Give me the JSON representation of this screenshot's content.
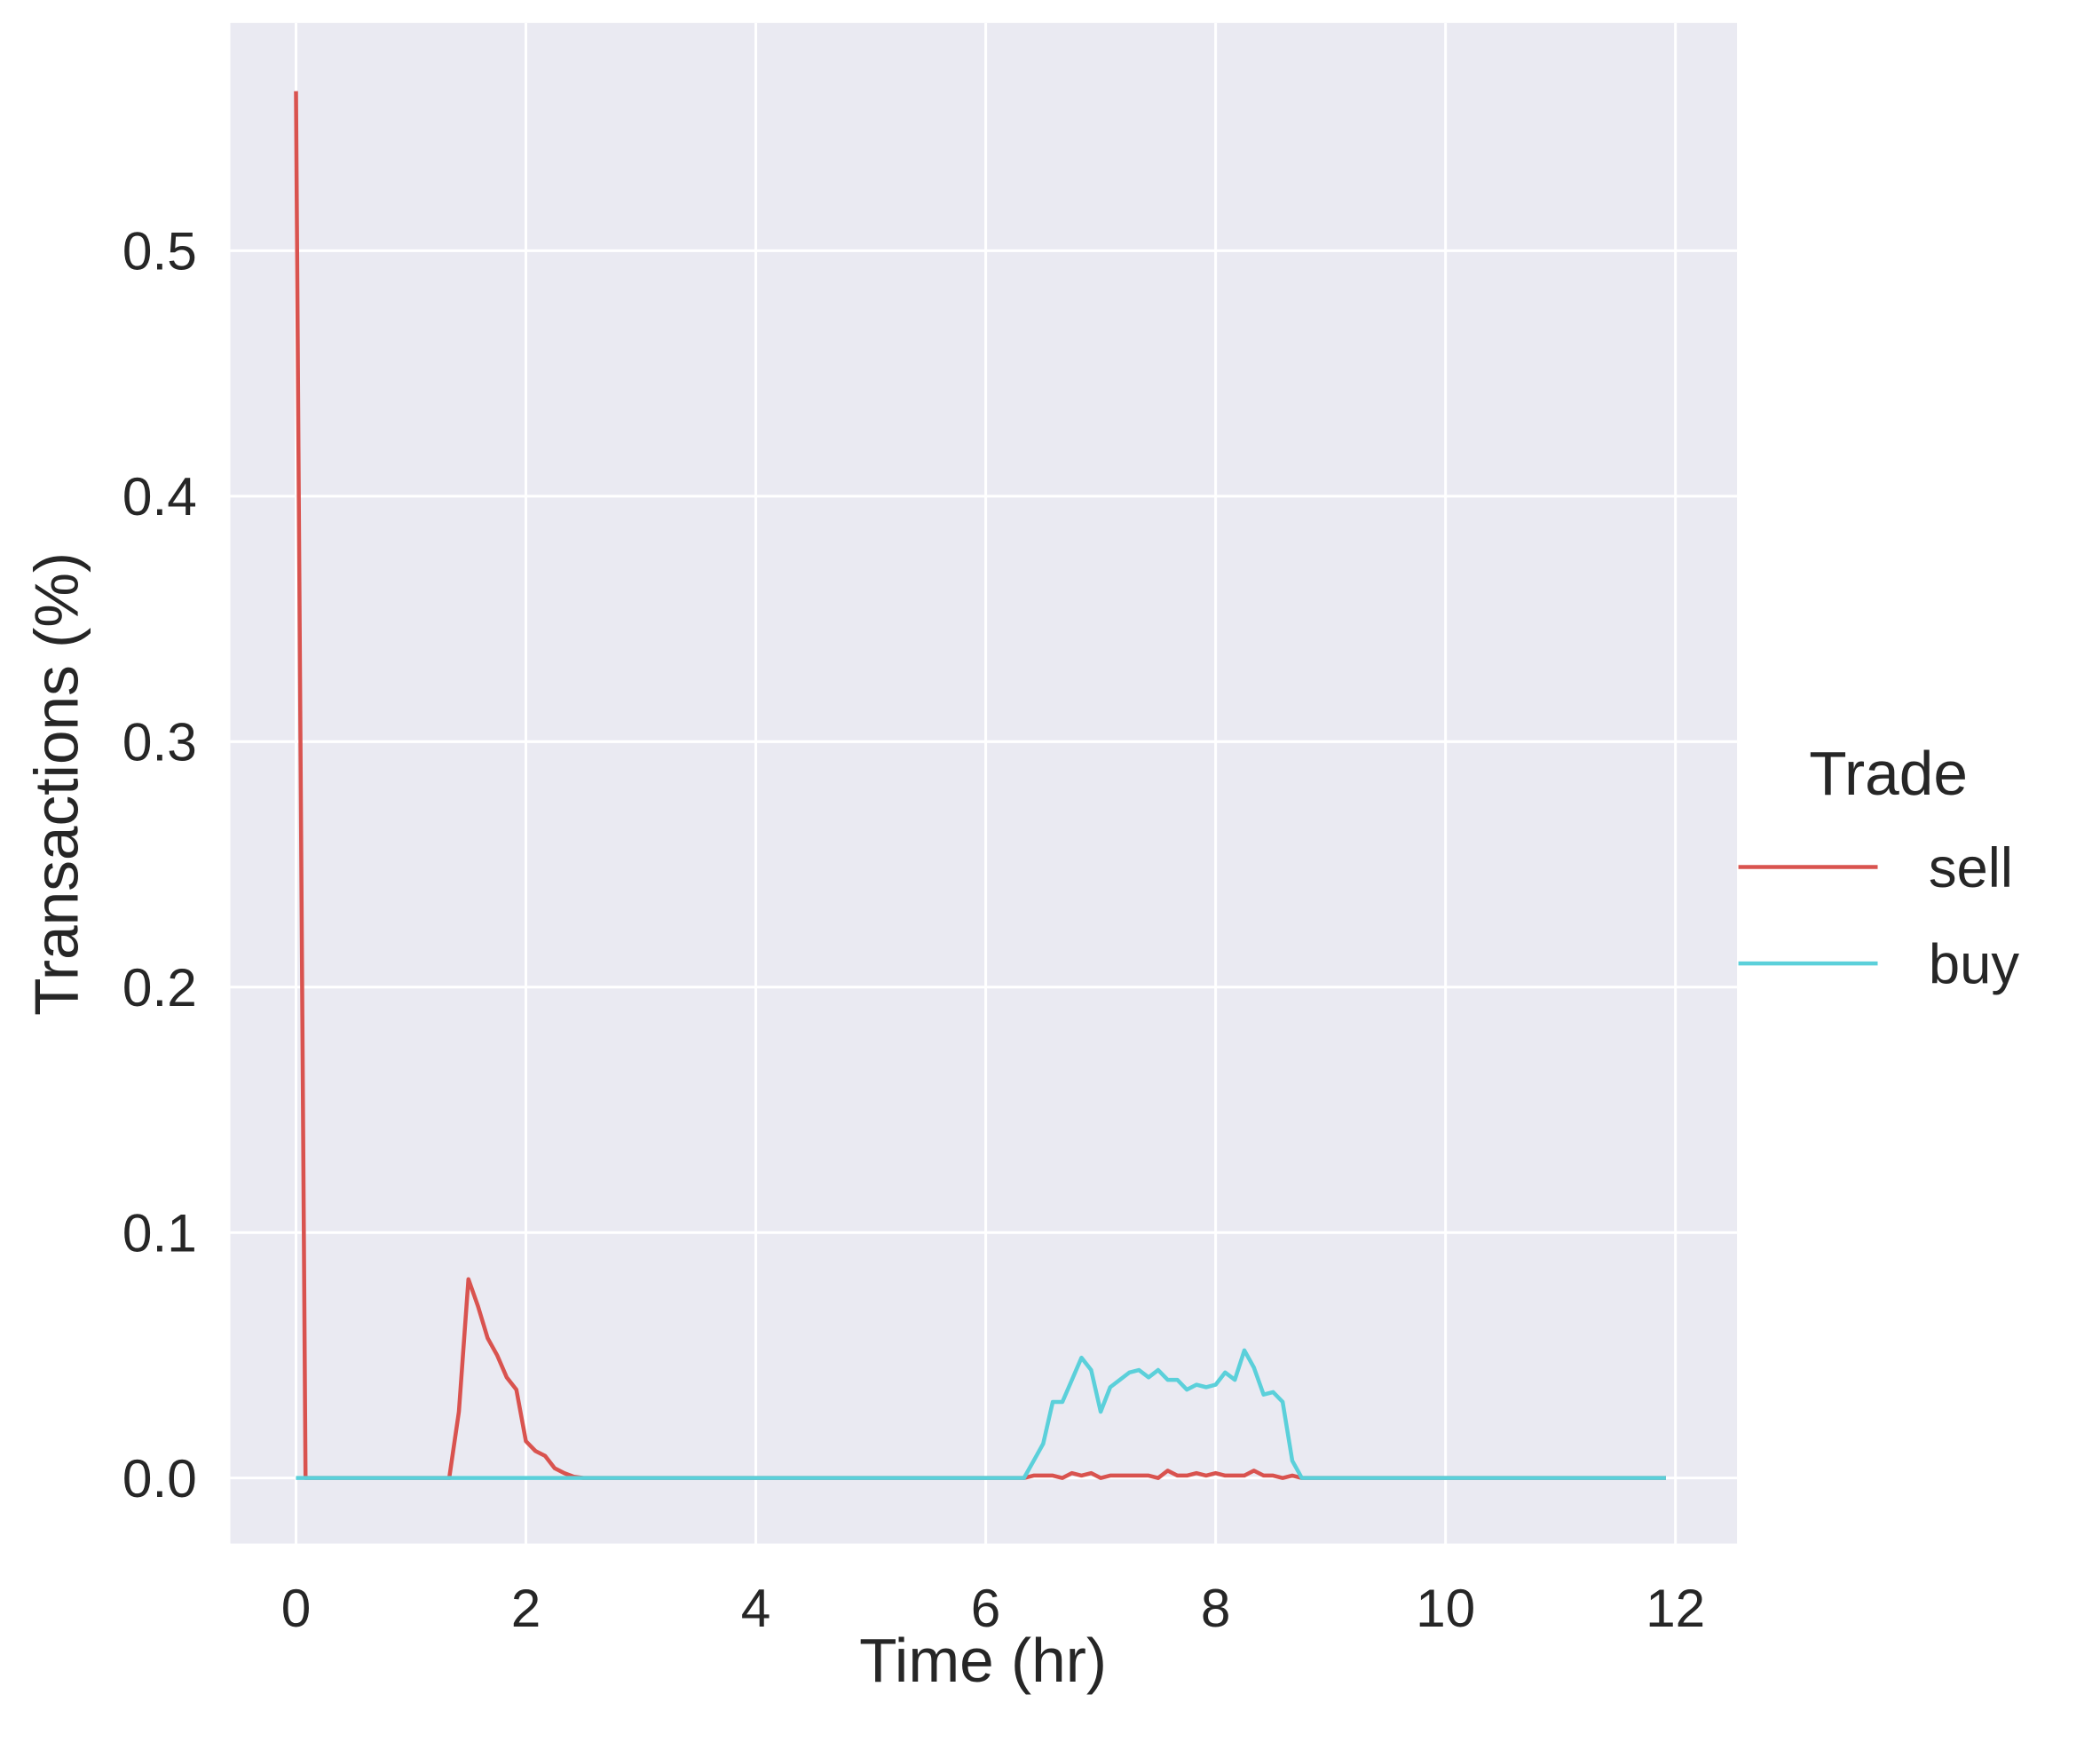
{
  "chart_data": {
    "type": "line",
    "x_label": "Time (hr)",
    "y_label": "Transactions (%)",
    "legend_title": "Trade",
    "legend_position": "right",
    "grid": true,
    "xlim": [
      -0.571,
      12.536
    ],
    "ylim": [
      -0.0267,
      0.5928
    ],
    "xticks": [
      0,
      2,
      4,
      6,
      8,
      10,
      12
    ],
    "yticks": [
      {
        "value": 0,
        "label": "0.0"
      },
      0.1,
      0.2,
      0.3,
      0.4,
      0.5
    ],
    "x": [
      0,
      0.083,
      0.167,
      0.25,
      0.333,
      0.417,
      0.5,
      0.583,
      0.667,
      0.75,
      0.833,
      0.917,
      1,
      1.083,
      1.167,
      1.25,
      1.333,
      1.417,
      1.5,
      1.583,
      1.667,
      1.75,
      1.833,
      1.917,
      2,
      2.083,
      2.167,
      2.25,
      2.333,
      2.417,
      2.5,
      2.583,
      2.667,
      2.75,
      2.833,
      2.917,
      3,
      3.083,
      3.167,
      3.25,
      3.333,
      3.417,
      3.5,
      3.583,
      3.667,
      3.75,
      3.833,
      3.917,
      4,
      4.083,
      4.167,
      4.25,
      4.333,
      4.417,
      4.5,
      4.583,
      4.667,
      4.75,
      4.833,
      4.917,
      5,
      5.083,
      5.167,
      5.25,
      5.333,
      5.417,
      5.5,
      5.583,
      5.667,
      5.75,
      5.833,
      5.917,
      6,
      6.083,
      6.167,
      6.25,
      6.333,
      6.417,
      6.5,
      6.583,
      6.667,
      6.75,
      6.833,
      6.917,
      7,
      7.083,
      7.167,
      7.25,
      7.333,
      7.417,
      7.5,
      7.583,
      7.667,
      7.75,
      7.833,
      7.917,
      8,
      8.083,
      8.167,
      8.25,
      8.333,
      8.417,
      8.5,
      8.583,
      8.667,
      8.75,
      8.833,
      8.917,
      9,
      9.083,
      9.167,
      9.25,
      9.333,
      9.417,
      9.5,
      9.583,
      9.667,
      9.75,
      9.833,
      9.917,
      10,
      10.083,
      10.167,
      10.25,
      10.333,
      10.417,
      10.5,
      10.583,
      10.667,
      10.75,
      10.833,
      10.917,
      11,
      11.083,
      11.167,
      11.25,
      11.333,
      11.417,
      11.5,
      11.583,
      11.667,
      11.75,
      11.833,
      11.917
    ],
    "series": [
      {
        "name": "sell",
        "color": "#d9534f",
        "values": [
          0.565,
          0,
          0,
          0,
          0,
          0,
          0,
          0,
          0,
          0,
          0,
          0,
          0,
          0,
          0,
          0,
          0,
          0.027,
          0.081,
          0.07,
          0.057,
          0.05,
          0.041,
          0.036,
          0.015,
          0.011,
          0.009,
          0.004,
          0.002,
          0.0005,
          0,
          0,
          0,
          0,
          0,
          0,
          0,
          0,
          0,
          0,
          0,
          0,
          0,
          0,
          0,
          0,
          0,
          0,
          0,
          0,
          0,
          0,
          0,
          0,
          0,
          0,
          0,
          0,
          0,
          0,
          0,
          0,
          0,
          0,
          0,
          0,
          0,
          0,
          0,
          0,
          0,
          0,
          0,
          0,
          0,
          0,
          0,
          0.001,
          0.001,
          0.001,
          0,
          0.002,
          0.001,
          0.002,
          0,
          0.001,
          0.001,
          0.001,
          0.001,
          0.001,
          0,
          0.003,
          0.001,
          0.001,
          0.002,
          0.001,
          0.002,
          0.001,
          0.001,
          0.001,
          0.003,
          0.001,
          0.001,
          0,
          0.001,
          0,
          0,
          0,
          0,
          0,
          0,
          0,
          0,
          0,
          0,
          0,
          0,
          0,
          0,
          0,
          0,
          0,
          0,
          0,
          0,
          0,
          0,
          0,
          0,
          0,
          0,
          0,
          0,
          0,
          0,
          0,
          0,
          0,
          0,
          0,
          0,
          0,
          0,
          0
        ]
      },
      {
        "name": "buy",
        "color": "#5bd0da",
        "values": [
          0,
          0,
          0,
          0,
          0,
          0,
          0,
          0,
          0,
          0,
          0,
          0,
          0,
          0,
          0,
          0,
          0,
          0,
          0,
          0,
          0,
          0,
          0,
          0,
          0,
          0,
          0,
          0,
          0,
          0,
          0,
          0,
          0,
          0,
          0,
          0,
          0,
          0,
          0,
          0,
          0,
          0,
          0,
          0,
          0,
          0,
          0,
          0,
          0,
          0,
          0,
          0,
          0,
          0,
          0,
          0,
          0,
          0,
          0,
          0,
          0,
          0,
          0,
          0,
          0,
          0,
          0,
          0,
          0,
          0,
          0,
          0,
          0,
          0,
          0,
          0,
          0,
          0.007,
          0.014,
          0.031,
          0.031,
          0.04,
          0.049,
          0.044,
          0.027,
          0.037,
          0.04,
          0.043,
          0.044,
          0.041,
          0.044,
          0.04,
          0.04,
          0.036,
          0.038,
          0.037,
          0.038,
          0.043,
          0.04,
          0.052,
          0.045,
          0.034,
          0.035,
          0.031,
          0.007,
          0,
          0,
          0,
          0,
          0,
          0,
          0,
          0,
          0,
          0,
          0,
          0,
          0,
          0,
          0,
          0,
          0,
          0,
          0,
          0,
          0,
          0,
          0,
          0,
          0,
          0,
          0,
          0,
          0,
          0,
          0,
          0,
          0,
          0,
          0,
          0,
          0,
          0,
          0
        ]
      }
    ]
  }
}
